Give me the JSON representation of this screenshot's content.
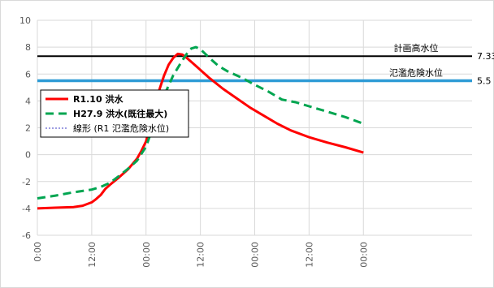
{
  "chart_data": {
    "type": "line",
    "title": "",
    "xlabel": "",
    "ylabel": "",
    "ylim": [
      -6,
      10
    ],
    "xlim": [
      0,
      96
    ],
    "y_ticks": [
      "10",
      "8",
      "6",
      "4",
      "2",
      "0",
      "-2",
      "-4",
      "-6"
    ],
    "x_ticks": [
      {
        "x": 0,
        "label": "0:00"
      },
      {
        "x": 12,
        "label": "12:00"
      },
      {
        "x": 24,
        "label": "00:00"
      },
      {
        "x": 36,
        "label": "12:00"
      },
      {
        "x": 48,
        "label": "00:00"
      },
      {
        "x": 60,
        "label": "12:00"
      },
      {
        "x": 72,
        "label": "00:00"
      }
    ],
    "grid": true,
    "legend_position": "left",
    "series": [
      {
        "name": "R1.10 洪水",
        "color": "#ff0000",
        "style": "solid",
        "points": [
          [
            0,
            -4.0
          ],
          [
            4,
            -3.95
          ],
          [
            8,
            -3.9
          ],
          [
            10,
            -3.8
          ],
          [
            12,
            -3.55
          ],
          [
            13,
            -3.3
          ],
          [
            14,
            -3.0
          ],
          [
            15,
            -2.55
          ],
          [
            16,
            -2.25
          ],
          [
            18,
            -1.7
          ],
          [
            20,
            -1.1
          ],
          [
            22,
            -0.3
          ],
          [
            23,
            0.3
          ],
          [
            24,
            1.0
          ],
          [
            25,
            2.3
          ],
          [
            26,
            3.7
          ],
          [
            27,
            4.9
          ],
          [
            28,
            5.9
          ],
          [
            29,
            6.7
          ],
          [
            30,
            7.2
          ],
          [
            31,
            7.5
          ],
          [
            32,
            7.45
          ],
          [
            33,
            7.2
          ],
          [
            35,
            6.6
          ],
          [
            38,
            5.7
          ],
          [
            41,
            4.9
          ],
          [
            44,
            4.2
          ],
          [
            47,
            3.5
          ],
          [
            50,
            2.9
          ],
          [
            53,
            2.3
          ],
          [
            56,
            1.8
          ],
          [
            60,
            1.3
          ],
          [
            64,
            0.9
          ],
          [
            68,
            0.55
          ],
          [
            72,
            0.15
          ]
        ]
      },
      {
        "name": "H27.9 洪水(既往最大)",
        "color": "#00a550",
        "style": "dashed",
        "points": [
          [
            0,
            -3.25
          ],
          [
            4,
            -3.05
          ],
          [
            8,
            -2.8
          ],
          [
            12,
            -2.6
          ],
          [
            14,
            -2.4
          ],
          [
            16,
            -2.1
          ],
          [
            18,
            -1.6
          ],
          [
            20,
            -1.05
          ],
          [
            22,
            -0.45
          ],
          [
            24,
            0.6
          ],
          [
            26,
            2.5
          ],
          [
            28,
            4.4
          ],
          [
            30,
            5.9
          ],
          [
            32,
            7.0
          ],
          [
            33,
            7.5
          ],
          [
            34,
            7.9
          ],
          [
            35,
            8.0
          ],
          [
            36,
            7.85
          ],
          [
            38,
            7.2
          ],
          [
            40,
            6.6
          ],
          [
            42,
            6.2
          ],
          [
            45,
            5.75
          ],
          [
            48,
            5.2
          ],
          [
            51,
            4.7
          ],
          [
            54,
            4.1
          ],
          [
            57,
            3.9
          ],
          [
            60,
            3.6
          ],
          [
            64,
            3.2
          ],
          [
            68,
            2.8
          ],
          [
            72,
            2.3
          ]
        ]
      },
      {
        "name": "線形 (R1 氾濫危険水位)",
        "color": "#7f7fd9",
        "style": "dotted",
        "points": []
      }
    ],
    "reference_lines": [
      {
        "label": "計画高水位",
        "value": 7.33,
        "value_label": "7.33",
        "color": "#000000"
      },
      {
        "label": "氾濫危険水位",
        "value": 5.5,
        "value_label": "5.5",
        "color": "#2e9bd6"
      }
    ]
  }
}
